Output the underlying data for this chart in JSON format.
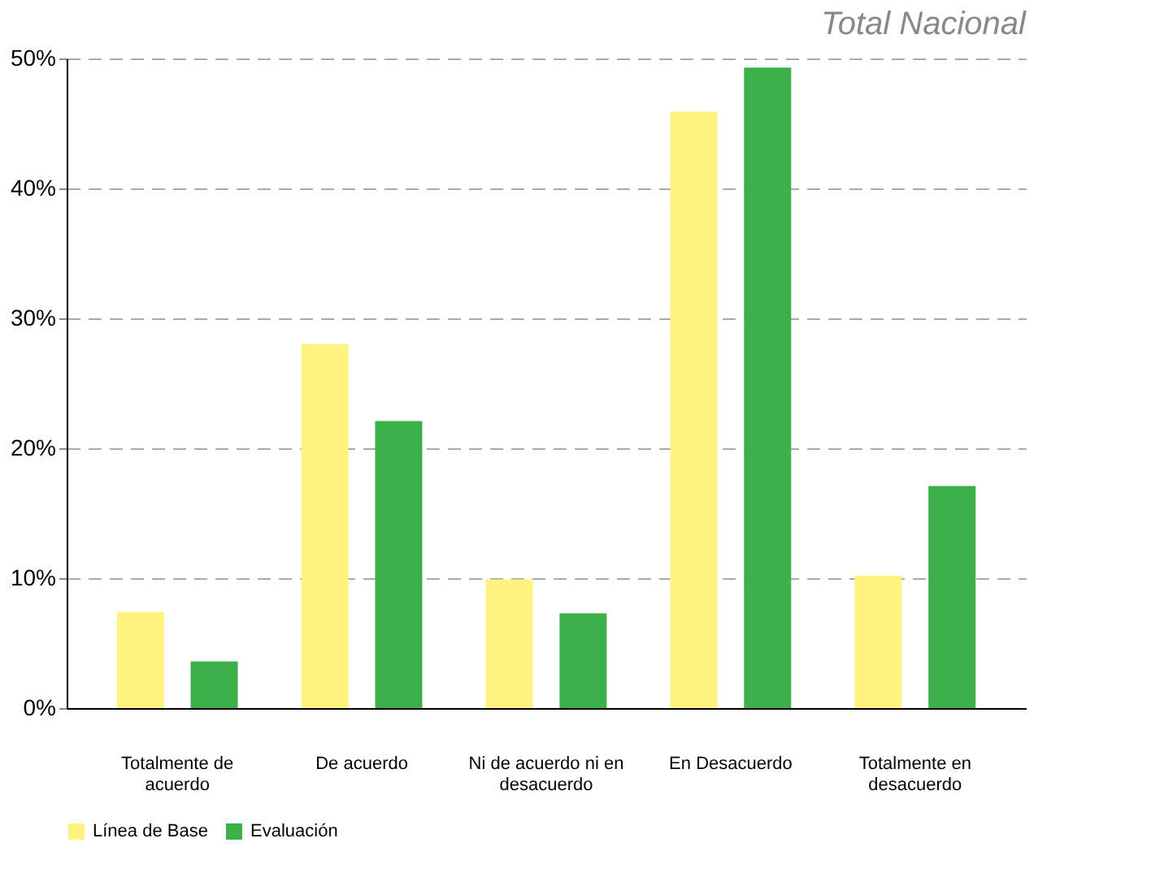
{
  "chart_data": {
    "type": "bar",
    "title": "Total Nacional",
    "categories": [
      "Totalmente de acuerdo",
      "De acuerdo",
      "Ni de acuerdo ni en desacuerdo",
      "En Desacuerdo",
      "Totalmente en desacuerdo"
    ],
    "series": [
      {
        "name": "Línea de Base",
        "color": "#fff27f",
        "values": [
          7.4,
          28.0,
          9.9,
          45.9,
          10.2
        ]
      },
      {
        "name": "Evaluación",
        "color": "#3cb04a",
        "values": [
          3.6,
          22.1,
          7.3,
          49.3,
          17.1
        ]
      }
    ],
    "ylim": [
      0,
      50
    ],
    "yticks": [
      {
        "value": 0,
        "label": "0%"
      },
      {
        "value": 10,
        "label": "10%"
      },
      {
        "value": 20,
        "label": "20%"
      },
      {
        "value": 30,
        "label": "30%"
      },
      {
        "value": 40,
        "label": "40%"
      },
      {
        "value": 50,
        "label": "50%"
      }
    ],
    "grid": "y",
    "legend": "bottom"
  }
}
